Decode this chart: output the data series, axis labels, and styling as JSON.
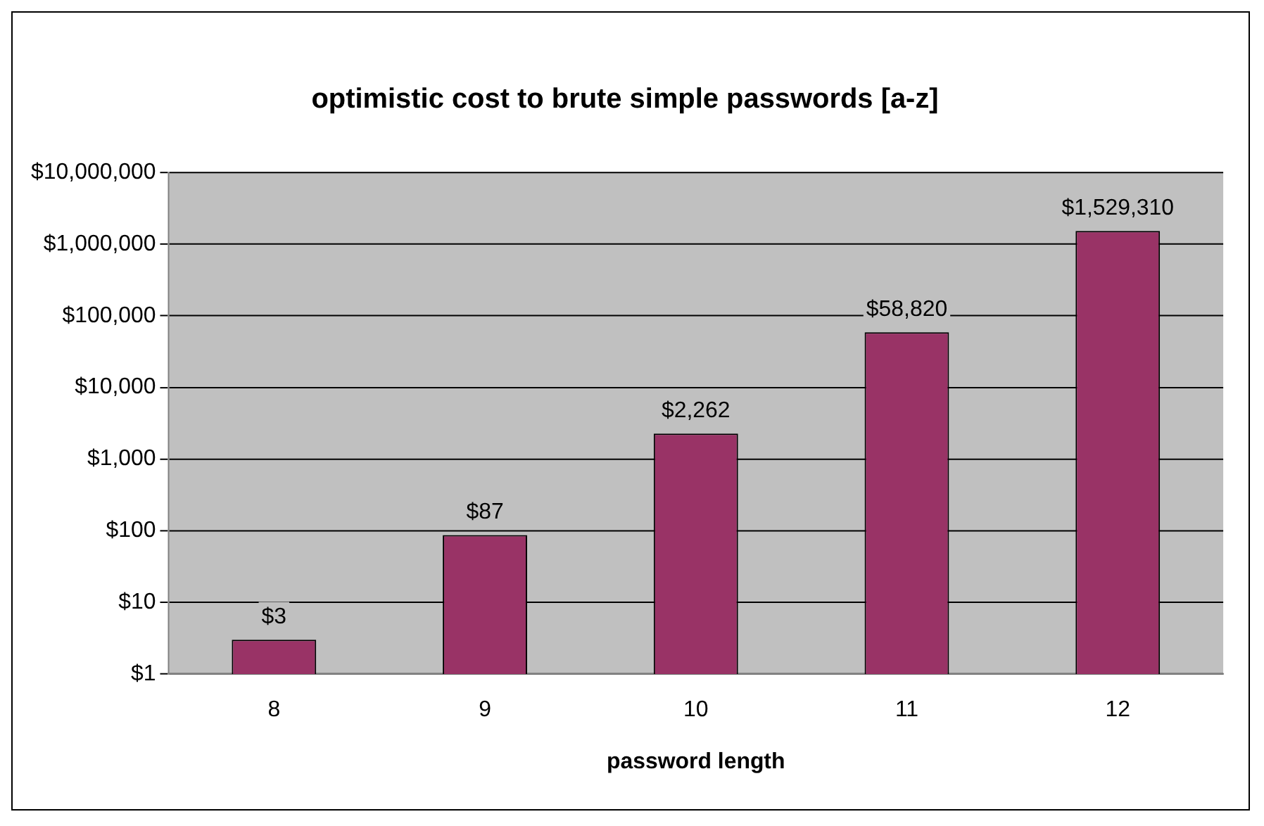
{
  "chart_data": {
    "type": "bar",
    "title": "optimistic cost to brute simple passwords [a-z]",
    "xlabel": "password length",
    "categories": [
      "8",
      "9",
      "10",
      "11",
      "12"
    ],
    "values": [
      3,
      87,
      2262,
      58820,
      1529310
    ],
    "value_labels": [
      "$3",
      "$87",
      "$2,262",
      "$58,820",
      "$1,529,310"
    ],
    "color": "#993366",
    "log": true,
    "ylim": [
      1,
      10000000
    ],
    "yticks": [
      {
        "value": 1,
        "label": "$1"
      },
      {
        "value": 10,
        "label": "$10"
      },
      {
        "value": 100,
        "label": "$100"
      },
      {
        "value": 1000,
        "label": "$1,000"
      },
      {
        "value": 10000,
        "label": "$10,000"
      },
      {
        "value": 100000,
        "label": "$100,000"
      },
      {
        "value": 1000000,
        "label": "$1,000,000"
      },
      {
        "value": 10000000,
        "label": "$10,000,000"
      }
    ],
    "grid": "y",
    "legend": false
  }
}
